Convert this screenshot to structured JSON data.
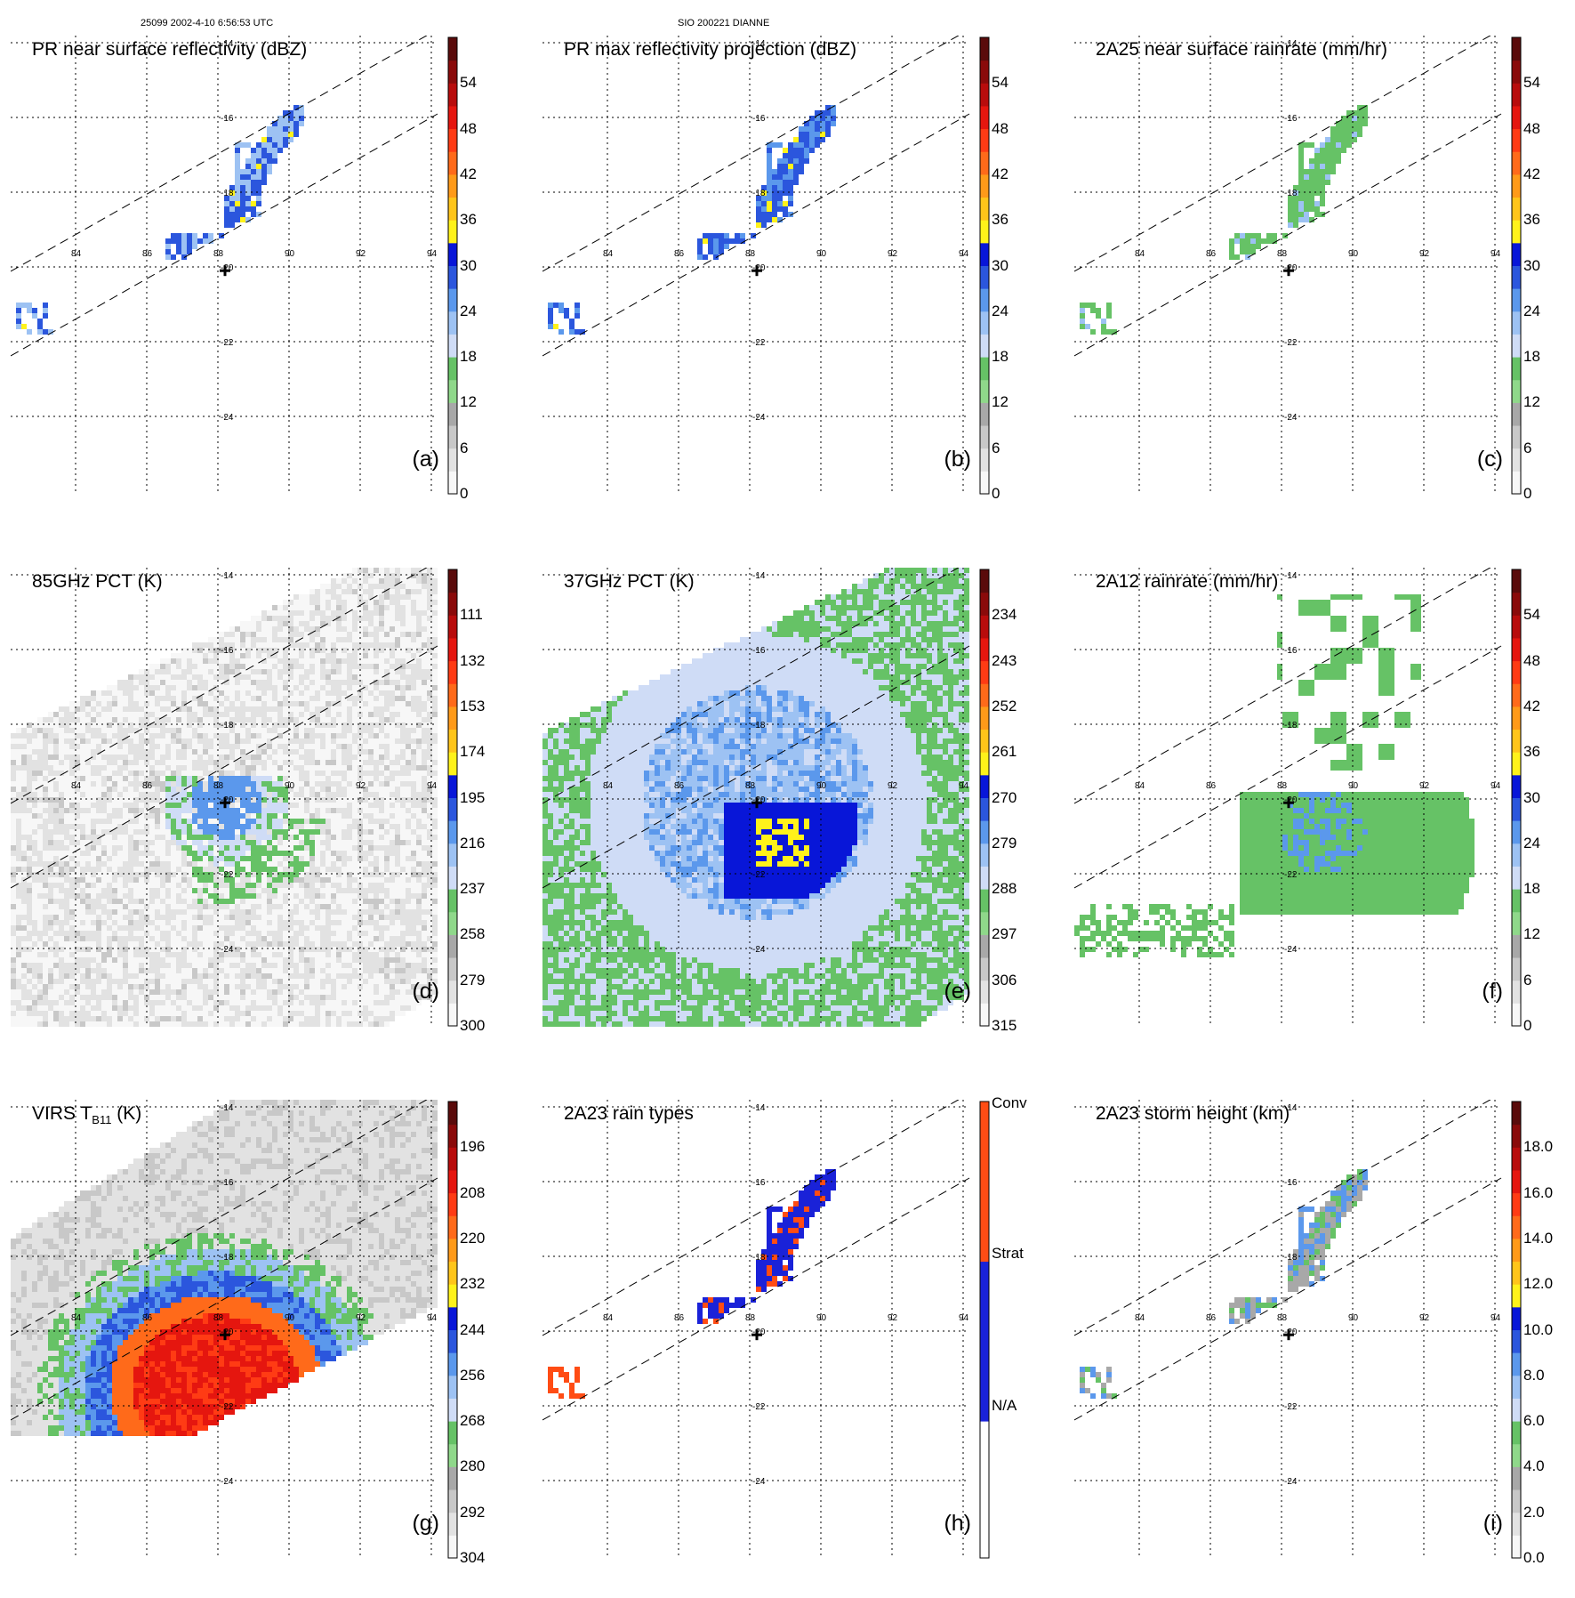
{
  "header": {
    "left_caption": "25099 2002-4-10 6:56:53 UTC",
    "center_caption": "SIO 200221 DIANNE"
  },
  "map_grid": {
    "lon_labels": [
      "84",
      "86",
      "88",
      "90",
      "92",
      "94"
    ],
    "lat_labels": [
      "-14",
      "-16",
      "-18",
      "-20",
      "-22",
      "-24"
    ]
  },
  "palettes": {
    "rain": [
      "#f7f7f7",
      "#e2e2e2",
      "#c8c8c8",
      "#a8a8a8",
      "#8fd88a",
      "#66c266",
      "#cfdcf6",
      "#9dc2f3",
      "#5b98ec",
      "#2b56dd",
      "#0816d8",
      "#fff21a",
      "#ffc51a",
      "#ff9a19",
      "#ff6a1a",
      "#ff3b14",
      "#e5160f",
      "#b80c0c",
      "#8a0a0a",
      "#5a0b0b"
    ],
    "pct": [
      "#f7f7f7",
      "#e2e2e2",
      "#c8c8c8",
      "#a8a8a8",
      "#8fd88a",
      "#66c266",
      "#cfdcf6",
      "#9dc2f3",
      "#5b98ec",
      "#2b56dd",
      "#0816d8",
      "#fff21a",
      "#ffc51a",
      "#ff9a19",
      "#ff6a1a",
      "#ff3b14",
      "#e5160f",
      "#b80c0c",
      "#8a0a0a",
      "#5a0b0b"
    ],
    "types": [
      "#ffffff",
      "#ffffff",
      "#ffffff",
      "#ffffff",
      "#ffffff",
      "#ffffff",
      "#1a22d8",
      "#1a22d8",
      "#1a22d8",
      "#1a22d8",
      "#1a22d8",
      "#1a22d8",
      "#1a22d8",
      "#ff4c14",
      "#ff4c14",
      "#ff4c14",
      "#ff4c14",
      "#ff4c14",
      "#ff4c14",
      "#ff4c14"
    ]
  },
  "panels": [
    {
      "id": "a",
      "title": "PR near surface reflectivity (dBZ)",
      "tag": "(a)",
      "colorbar": [
        "0",
        "6",
        "12",
        "18",
        "24",
        "30",
        "36",
        "42",
        "48",
        "54"
      ],
      "palette": "rain",
      "field": "pr"
    },
    {
      "id": "b",
      "title": "PR max reflectivity projection (dBZ)",
      "tag": "(b)",
      "colorbar": [
        "0",
        "6",
        "12",
        "18",
        "24",
        "30",
        "36",
        "42",
        "48",
        "54"
      ],
      "palette": "rain",
      "field": "prmax"
    },
    {
      "id": "c",
      "title": "2A25 near surface rainrate (mm/hr)",
      "tag": "(c)",
      "colorbar": [
        "0",
        "6",
        "12",
        "18",
        "24",
        "30",
        "36",
        "42",
        "48",
        "54"
      ],
      "palette": "rain",
      "field": "rr"
    },
    {
      "id": "d",
      "title": "85GHz PCT (K)",
      "tag": "(d)",
      "colorbar": [
        "300",
        "279",
        "258",
        "237",
        "216",
        "195",
        "174",
        "153",
        "132",
        "111"
      ],
      "palette": "pct",
      "field": "p85"
    },
    {
      "id": "e",
      "title": "37GHz PCT (K)",
      "tag": "(e)",
      "colorbar": [
        "315",
        "306",
        "297",
        "288",
        "279",
        "270",
        "261",
        "252",
        "243",
        "234"
      ],
      "palette": "pct",
      "field": "p37"
    },
    {
      "id": "f",
      "title": "2A12 rainrate (mm/hr)",
      "tag": "(f)",
      "colorbar": [
        "0",
        "6",
        "12",
        "18",
        "24",
        "30",
        "36",
        "42",
        "48",
        "54"
      ],
      "palette": "rain",
      "field": "a12"
    },
    {
      "id": "g",
      "title": "VIRS T",
      "title_sub": "B11",
      "title_suffix": " (K)",
      "tag": "(g)",
      "colorbar": [
        "304",
        "292",
        "280",
        "268",
        "256",
        "244",
        "232",
        "220",
        "208",
        "196"
      ],
      "palette": "pct",
      "field": "virs"
    },
    {
      "id": "h",
      "title": "2A23 rain types",
      "tag": "(h)",
      "colorbar_types": [
        "N/A",
        "Strat",
        "Conv"
      ],
      "palette": "types",
      "field": "types"
    },
    {
      "id": "i",
      "title": "2A23 storm height (km)",
      "tag": "(i)",
      "colorbar": [
        "0.0",
        "2.0",
        "4.0",
        "6.0",
        "8.0",
        "10.0",
        "12.0",
        "14.0",
        "16.0",
        "18.0"
      ],
      "palette": "rain",
      "field": "sh"
    }
  ]
}
